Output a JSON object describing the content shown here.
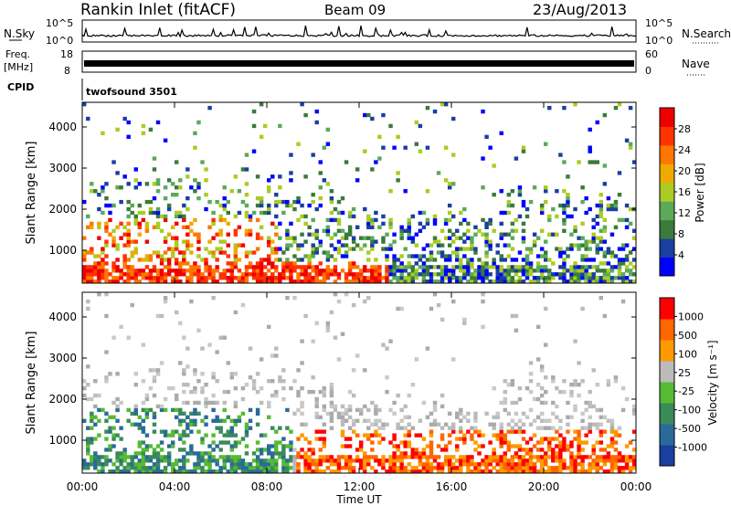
{
  "header": {
    "station": "Rankin Inlet (fitACF)",
    "beam": "Beam 09",
    "date": "23/Aug/2013"
  },
  "noise_panel": {
    "left_label": "N.Sky",
    "left_ticks": [
      "10^5",
      "10^0"
    ],
    "right_ticks": [
      "10^5",
      "10^0"
    ],
    "right_label": "N.Search"
  },
  "freq_panel": {
    "left_label_line1": "Freq.",
    "left_label_line2": "[MHz]",
    "left_ticks": [
      "18",
      "8"
    ],
    "right_ticks": [
      "60",
      "0"
    ],
    "right_label": "Nave"
  },
  "cpid": {
    "label": "CPID",
    "value": "twofsound 3501"
  },
  "chart_data": [
    {
      "type": "heatmap",
      "ylabel": "Slant Range [km]",
      "y_ticks": [
        1000,
        2000,
        3000,
        4000
      ],
      "ylim": [
        200,
        4600
      ],
      "xlim": [
        "00:00",
        "24:00"
      ],
      "colorbar": {
        "label": "Power [dB]",
        "ticks": [
          "28",
          "24",
          "20",
          "16",
          "12",
          "8",
          "4"
        ],
        "colors": [
          "#0000ff",
          "#1a3fa0",
          "#3a7a3a",
          "#5aaa5a",
          "#aacc22",
          "#eeaa00",
          "#ff7700",
          "#ff3300",
          "#ee0000"
        ]
      }
    },
    {
      "type": "heatmap",
      "ylabel": "Slant Range [km]",
      "y_ticks": [
        1000,
        2000,
        3000,
        4000
      ],
      "ylim": [
        200,
        4600
      ],
      "xlim": [
        "00:00",
        "24:00"
      ],
      "colorbar": {
        "label": "Velocity [m s⁻¹]",
        "ticks": [
          "1000",
          "500",
          "100",
          "25",
          "-25",
          "-100",
          "-500",
          "-1000"
        ],
        "colors": [
          "#1a3fa0",
          "#2a6a9a",
          "#3a8a5a",
          "#55bb33",
          "#bbbbbb",
          "#ff9900",
          "#ff6600",
          "#ff0000"
        ]
      }
    }
  ],
  "x_axis": {
    "ticks": [
      "00:00",
      "04:00",
      "08:00",
      "12:00",
      "16:00",
      "20:00",
      "00:00"
    ],
    "label": "Time UT"
  }
}
